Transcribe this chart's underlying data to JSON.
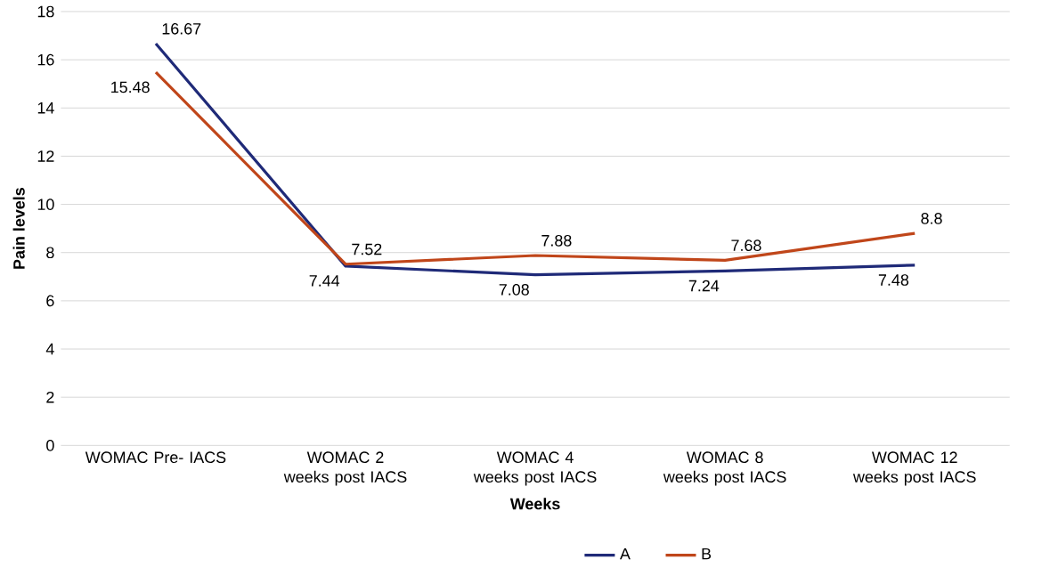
{
  "chart_data": {
    "type": "line",
    "xlabel": "Weeks",
    "ylabel": "Pain levels",
    "categories": [
      "WOMAC Pre- IACS",
      "WOMAC 2 weeks post IACS",
      "WOMAC 4 weeks post IACS",
      "WOMAC 8 weeks post IACS",
      "WOMAC 12 weeks post IACS"
    ],
    "series": [
      {
        "name": "A",
        "color": "#1f2a78",
        "values": [
          16.67,
          7.44,
          7.08,
          7.24,
          7.48
        ]
      },
      {
        "name": "B",
        "color": "#c0461a",
        "values": [
          15.48,
          7.52,
          7.88,
          7.68,
          8.8
        ]
      }
    ],
    "ylim": [
      0,
      18
    ],
    "yticks": [
      0,
      2,
      4,
      6,
      8,
      10,
      12,
      14,
      16,
      18
    ],
    "grid": "y",
    "legend": "bottom",
    "data_labels": true,
    "marker": "none",
    "line_style": "solid"
  }
}
